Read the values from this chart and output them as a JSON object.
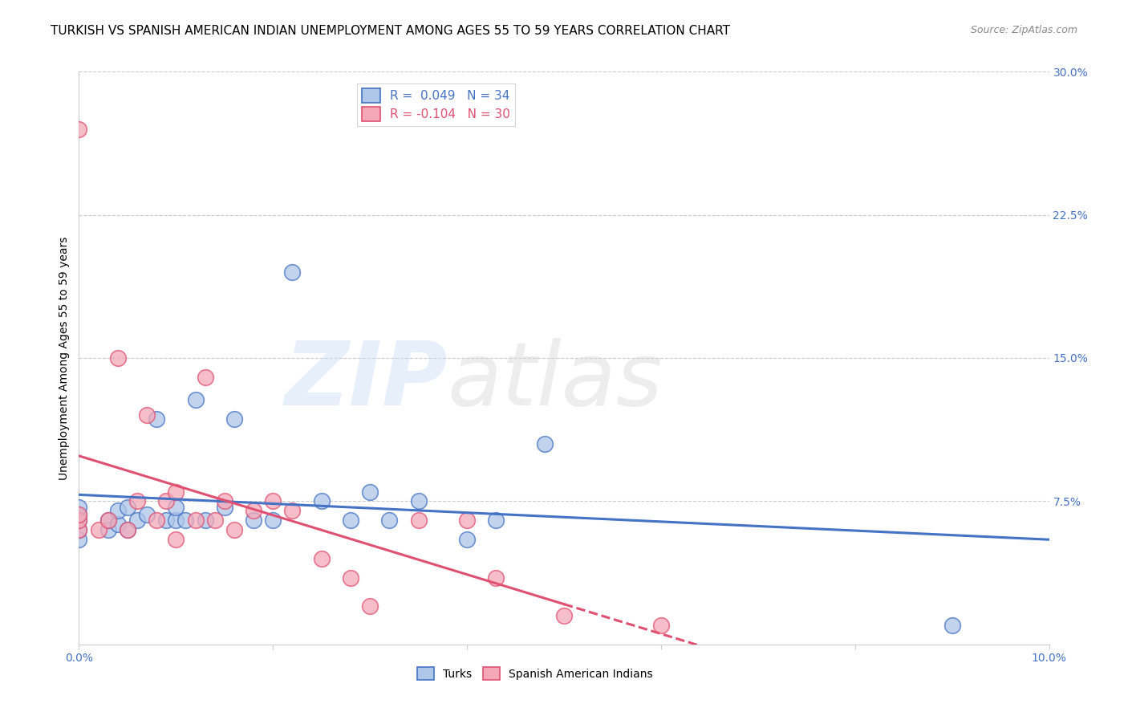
{
  "title": "TURKISH VS SPANISH AMERICAN INDIAN UNEMPLOYMENT AMONG AGES 55 TO 59 YEARS CORRELATION CHART",
  "source": "Source: ZipAtlas.com",
  "ylabel": "Unemployment Among Ages 55 to 59 years",
  "xlim": [
    0.0,
    0.1
  ],
  "ylim": [
    0.0,
    0.3
  ],
  "yticks": [
    0.075,
    0.15,
    0.225,
    0.3
  ],
  "ytick_labels": [
    "7.5%",
    "15.0%",
    "22.5%",
    "30.0%"
  ],
  "xticks": [
    0.0,
    0.02,
    0.04,
    0.06,
    0.08,
    0.1
  ],
  "xtick_labels": [
    "0.0%",
    "",
    "",
    "",
    "",
    "10.0%"
  ],
  "legend_r_entries": [
    {
      "label": "R =  0.049",
      "n_label": "N = 34",
      "facecolor": "#aec6e8",
      "edgecolor": "#4472c4",
      "textcolor_r": "#4472c4",
      "textcolor_n": "#4472c4"
    },
    {
      "label": "R = -0.104",
      "n_label": "N = 30",
      "facecolor": "#f4a8b8",
      "edgecolor": "#e05070",
      "textcolor_r": "#e05070",
      "textcolor_n": "#4472c4"
    }
  ],
  "turks_x": [
    0.0,
    0.0,
    0.0,
    0.0,
    0.0,
    0.003,
    0.003,
    0.004,
    0.004,
    0.005,
    0.005,
    0.006,
    0.007,
    0.008,
    0.009,
    0.01,
    0.01,
    0.011,
    0.012,
    0.013,
    0.015,
    0.016,
    0.018,
    0.02,
    0.022,
    0.025,
    0.028,
    0.03,
    0.032,
    0.035,
    0.04,
    0.043,
    0.048,
    0.09
  ],
  "turks_y": [
    0.055,
    0.06,
    0.065,
    0.068,
    0.072,
    0.06,
    0.065,
    0.063,
    0.07,
    0.06,
    0.072,
    0.065,
    0.068,
    0.118,
    0.065,
    0.065,
    0.072,
    0.065,
    0.128,
    0.065,
    0.072,
    0.118,
    0.065,
    0.065,
    0.195,
    0.075,
    0.065,
    0.08,
    0.065,
    0.075,
    0.055,
    0.065,
    0.105,
    0.01
  ],
  "sai_x": [
    0.0,
    0.0,
    0.0,
    0.0,
    0.002,
    0.003,
    0.004,
    0.005,
    0.006,
    0.007,
    0.008,
    0.009,
    0.01,
    0.01,
    0.012,
    0.013,
    0.014,
    0.015,
    0.016,
    0.018,
    0.02,
    0.022,
    0.025,
    0.028,
    0.03,
    0.035,
    0.04,
    0.043,
    0.05,
    0.06
  ],
  "sai_y": [
    0.06,
    0.065,
    0.068,
    0.27,
    0.06,
    0.065,
    0.15,
    0.06,
    0.075,
    0.12,
    0.065,
    0.075,
    0.055,
    0.08,
    0.065,
    0.14,
    0.065,
    0.075,
    0.06,
    0.07,
    0.075,
    0.07,
    0.045,
    0.035,
    0.02,
    0.065,
    0.065,
    0.035,
    0.015,
    0.01
  ],
  "turks_color": "#aec6e8",
  "sai_color": "#f4a8b8",
  "turks_line_color": "#4472c4",
  "sai_line_color": "#e05070",
  "background_color": "#ffffff",
  "title_fontsize": 11,
  "label_fontsize": 10,
  "tick_fontsize": 10,
  "legend_fontsize": 11,
  "source_fontsize": 9
}
